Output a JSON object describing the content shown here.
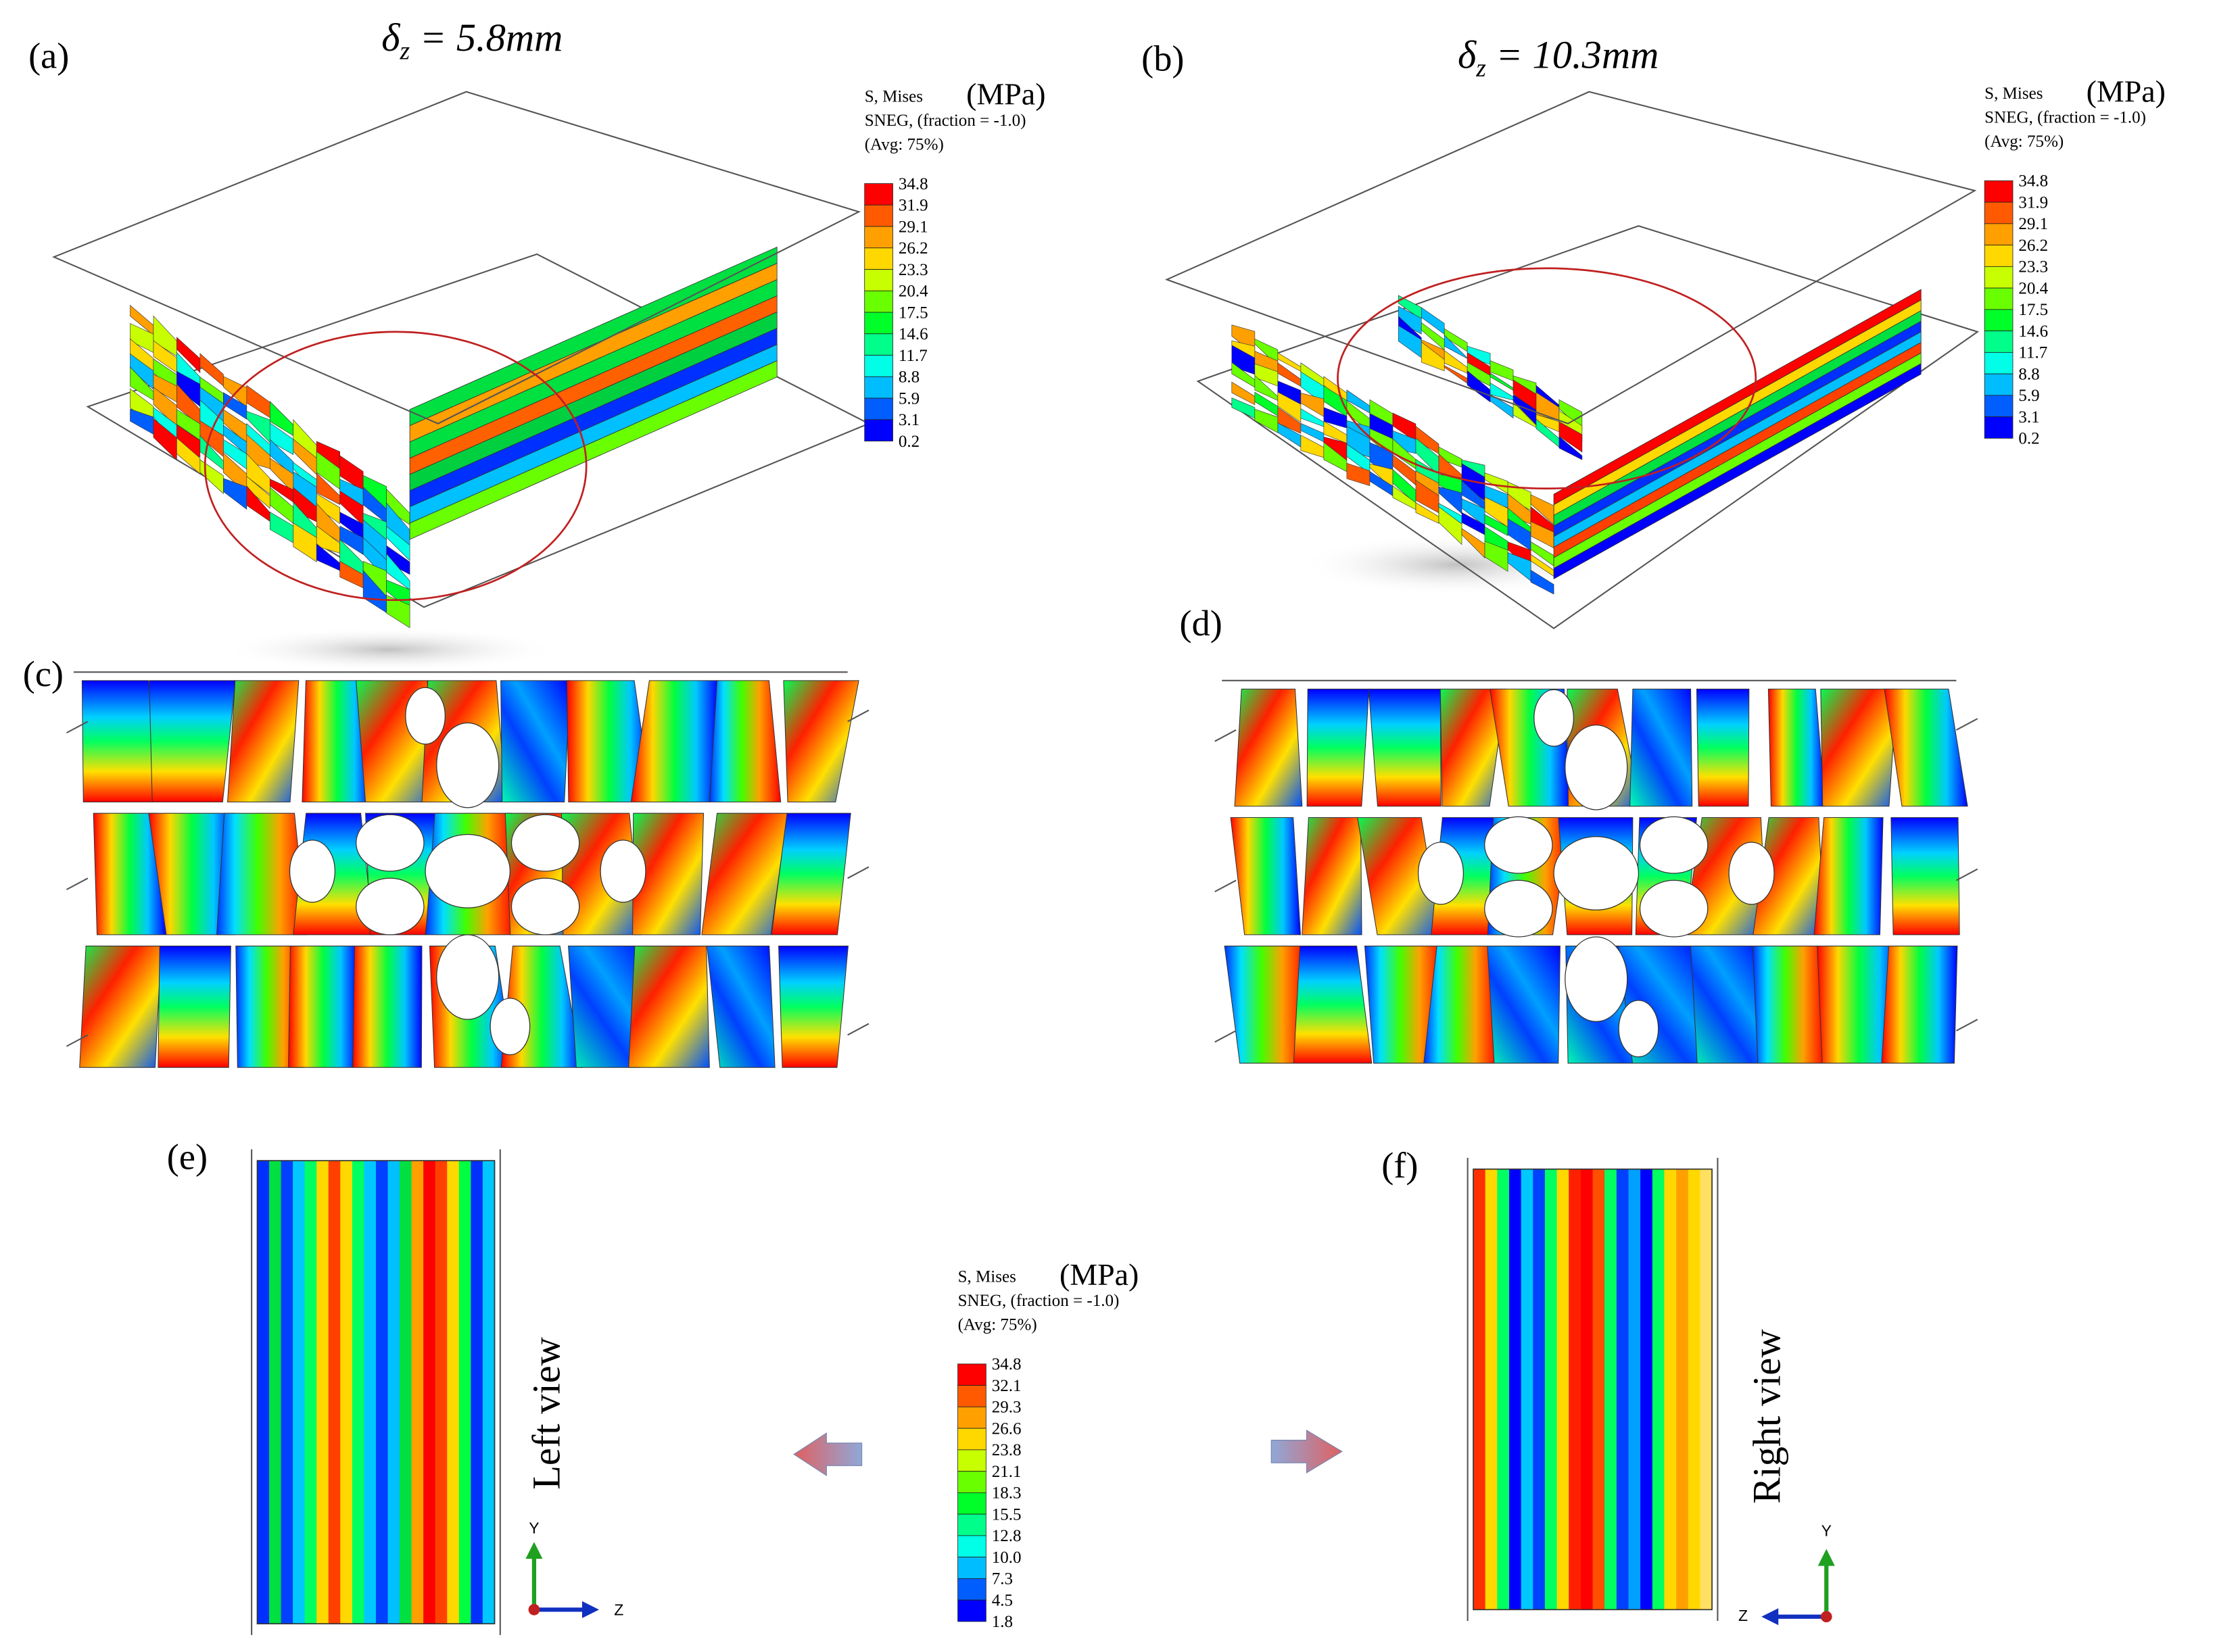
{
  "panels": [
    {
      "label": "(a)",
      "title": {
        "symbol": "δ",
        "subscript": "z",
        "rest": " = 5.8mm"
      }
    },
    {
      "label": "(b)",
      "title": {
        "symbol": "δ",
        "subscript": "z",
        "rest": " = 10.3mm"
      }
    },
    {
      "label": "(c)"
    },
    {
      "label": "(d)"
    },
    {
      "label": "(e)"
    },
    {
      "label": "(f)"
    }
  ],
  "legends": [
    {
      "lines": [
        "S, Mises",
        "SNEG, (fraction = -1.0)",
        "(Avg: 75%)"
      ],
      "unit": "(MPa)",
      "levels": [
        "34.8",
        "31.9",
        "29.1",
        "26.2",
        "23.3",
        "20.4",
        "17.5",
        "14.6",
        "11.7",
        "8.8",
        "5.9",
        "3.1",
        "0.2"
      ]
    },
    {
      "lines": [
        "S, Mises",
        "SNEG, (fraction = -1.0)",
        "(Avg: 75%)"
      ],
      "unit": "(MPa)",
      "levels": [
        "34.8",
        "31.9",
        "29.1",
        "26.2",
        "23.3",
        "20.4",
        "17.5",
        "14.6",
        "11.7",
        "8.8",
        "5.9",
        "3.1",
        "0.2"
      ]
    },
    {
      "lines": [
        "S, Mises",
        "SNEG, (fraction = -1.0)",
        "(Avg: 75%)"
      ],
      "unit": "(MPa)",
      "levels": [
        "34.8",
        "32.1",
        "29.3",
        "26.6",
        "23.8",
        "21.1",
        "18.3",
        "15.5",
        "12.8",
        "10.0",
        "7.3",
        "4.5",
        "1.8"
      ]
    }
  ],
  "views": [
    "Left view",
    "Right view"
  ],
  "triads": [
    {
      "up": "Y",
      "side": "Z"
    },
    {
      "up": "Y",
      "side": "Z"
    }
  ]
}
